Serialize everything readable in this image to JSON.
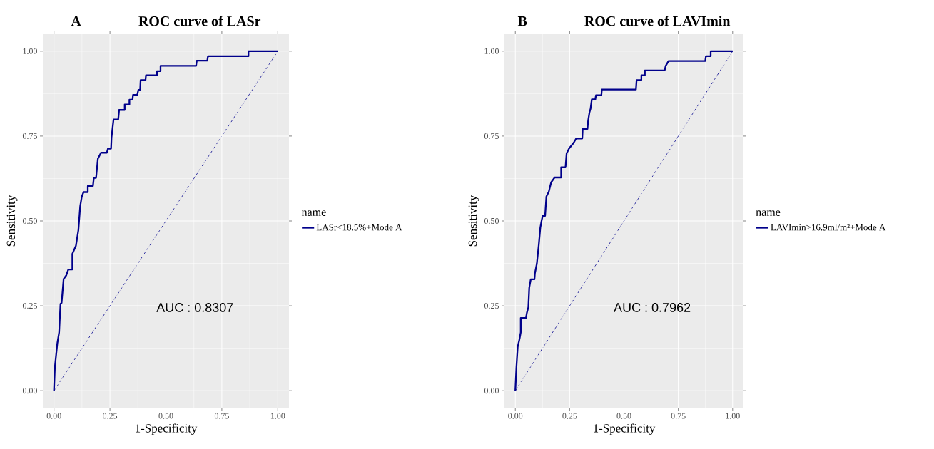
{
  "chart_data": [
    {
      "type": "line",
      "title": "ROC curve of LASr",
      "xlabel": "1-Specificity",
      "ylabel": "Sensitivity",
      "legend_title": "name",
      "legend": "right",
      "grid": true,
      "marker": "none",
      "annotations": [
        "A",
        "AUC : 0.8307"
      ],
      "xlim": [
        -0.05,
        1.05
      ],
      "ylim": [
        -0.05,
        1.05
      ],
      "xticks": [
        {
          "value": 0,
          "label": "0.00"
        },
        {
          "value": 0.25,
          "label": "0.25"
        },
        {
          "value": 0.5,
          "label": "0.50"
        },
        {
          "value": 0.75,
          "label": "0.75"
        },
        {
          "value": 1,
          "label": "1.00"
        }
      ],
      "yticks": [
        {
          "value": 0,
          "label": "0.00"
        },
        {
          "value": 0.25,
          "label": "0.25"
        },
        {
          "value": 0.5,
          "label": "0.50"
        },
        {
          "value": 0.75,
          "label": "0.75"
        },
        {
          "value": 1,
          "label": "1.00"
        }
      ],
      "series": [
        {
          "name": "LASr<18.5%+Mode A",
          "color": "#00008b",
          "line_style": "solid",
          "x": [
            0,
            0.004,
            0.015,
            0.023,
            0.029,
            0.034,
            0.043,
            0.055,
            0.064,
            0.082,
            0.082,
            0.098,
            0.109,
            0.117,
            0.124,
            0.132,
            0.151,
            0.151,
            0.174,
            0.178,
            0.188,
            0.196,
            0.21,
            0.236,
            0.241,
            0.255,
            0.257,
            0.266,
            0.287,
            0.291,
            0.316,
            0.316,
            0.337,
            0.337,
            0.351,
            0.353,
            0.372,
            0.377,
            0.385,
            0.387,
            0.409,
            0.411,
            0.46,
            0.46,
            0.476,
            0.476,
            0.635,
            0.638,
            0.685,
            0.688,
            0.869,
            0.869,
            1
          ],
          "values": [
            0,
            0.07,
            0.14,
            0.172,
            0.256,
            0.259,
            0.329,
            0.34,
            0.357,
            0.357,
            0.403,
            0.427,
            0.473,
            0.543,
            0.571,
            0.585,
            0.585,
            0.603,
            0.603,
            0.627,
            0.627,
            0.683,
            0.701,
            0.701,
            0.713,
            0.713,
            0.746,
            0.799,
            0.799,
            0.827,
            0.827,
            0.843,
            0.843,
            0.857,
            0.857,
            0.871,
            0.871,
            0.886,
            0.886,
            0.915,
            0.915,
            0.929,
            0.929,
            0.941,
            0.941,
            0.957,
            0.957,
            0.972,
            0.972,
            0.985,
            0.985,
            1,
            1
          ]
        },
        {
          "color": "#00008b",
          "line_style": "dashdot",
          "x": [
            0,
            1
          ],
          "values": [
            0,
            1
          ]
        }
      ]
    },
    {
      "type": "line",
      "title": "ROC curve of LAVImin",
      "xlabel": "1-Specificity",
      "ylabel": "Sensitivity",
      "legend_title": "name",
      "legend": "right",
      "grid": true,
      "marker": "none",
      "annotations": [
        "B",
        "AUC : 0.7962"
      ],
      "xlim": [
        -0.05,
        1.05
      ],
      "ylim": [
        -0.05,
        1.05
      ],
      "xticks": [
        {
          "value": 0,
          "label": "0.00"
        },
        {
          "value": 0.25,
          "label": "0.25"
        },
        {
          "value": 0.5,
          "label": "0.50"
        },
        {
          "value": 0.75,
          "label": "0.75"
        },
        {
          "value": 1,
          "label": "1.00"
        }
      ],
      "yticks": [
        {
          "value": 0,
          "label": "0.00"
        },
        {
          "value": 0.25,
          "label": "0.25"
        },
        {
          "value": 0.5,
          "label": "0.50"
        },
        {
          "value": 0.75,
          "label": "0.75"
        },
        {
          "value": 1,
          "label": "1.00"
        }
      ],
      "series": [
        {
          "name": "LAVImin>16.9ml/m²+Mode A",
          "color": "#00008b",
          "line_style": "solid",
          "x": [
            0,
            0.005,
            0.011,
            0.02,
            0.025,
            0.025,
            0.049,
            0.053,
            0.06,
            0.064,
            0.071,
            0.088,
            0.09,
            0.099,
            0.108,
            0.115,
            0.121,
            0.126,
            0.137,
            0.143,
            0.154,
            0.165,
            0.181,
            0.211,
            0.211,
            0.231,
            0.236,
            0.247,
            0.269,
            0.28,
            0.308,
            0.31,
            0.332,
            0.335,
            0.341,
            0.346,
            0.352,
            0.368,
            0.371,
            0.396,
            0.398,
            0.555,
            0.558,
            0.58,
            0.58,
            0.596,
            0.596,
            0.687,
            0.692,
            0.705,
            0.874,
            0.877,
            0.899,
            0.899,
            1
          ],
          "values": [
            0,
            0.069,
            0.129,
            0.154,
            0.172,
            0.214,
            0.214,
            0.229,
            0.246,
            0.303,
            0.328,
            0.328,
            0.345,
            0.374,
            0.43,
            0.48,
            0.501,
            0.515,
            0.515,
            0.572,
            0.586,
            0.614,
            0.628,
            0.628,
            0.658,
            0.658,
            0.699,
            0.713,
            0.731,
            0.743,
            0.743,
            0.771,
            0.771,
            0.795,
            0.819,
            0.83,
            0.858,
            0.858,
            0.87,
            0.87,
            0.887,
            0.887,
            0.915,
            0.915,
            0.929,
            0.929,
            0.943,
            0.943,
            0.957,
            0.971,
            0.971,
            0.985,
            0.985,
            1,
            1
          ]
        },
        {
          "color": "#00008b",
          "line_style": "dashdot",
          "x": [
            0,
            1
          ],
          "values": [
            0,
            1
          ]
        }
      ]
    }
  ]
}
